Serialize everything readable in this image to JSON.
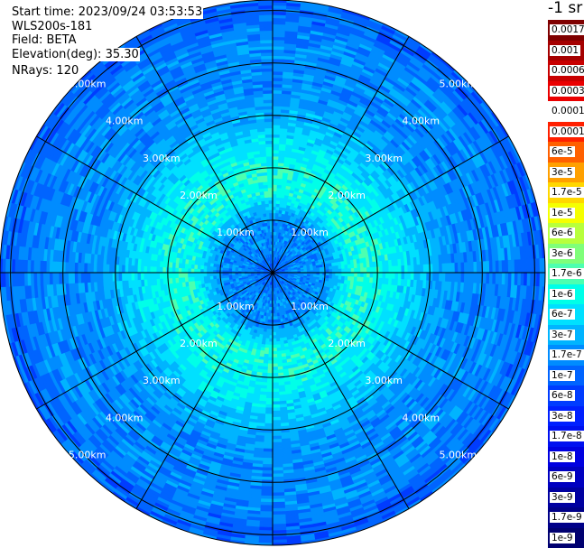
{
  "header": {
    "start_time": "Start time: 2023/09/24 03:53:53",
    "instrument": "WLS200s-181",
    "field": "Field: BETA",
    "elevation_label": "Elevation(deg):",
    "elevation_value": "35.30",
    "nrays": "NRays: 120"
  },
  "colorbar": {
    "unit": "-1 sr",
    "tick_labels": [
      "0.0017",
      "0.001",
      "0.0006",
      "0.0003",
      "0.00017",
      "0.0001",
      "6e-5",
      "3e-5",
      "1.7e-5",
      "1e-5",
      "6e-6",
      "3e-6",
      "1.7e-6",
      "1e-6",
      "6e-7",
      "3e-7",
      "1.7e-7",
      "1e-7",
      "6e-8",
      "3e-8",
      "1.7e-8",
      "1e-8",
      "6e-9",
      "3e-9",
      "1.7e-9",
      "1e-9"
    ],
    "colors": [
      "#7f0000",
      "#a50000",
      "#c80000",
      "#ea0000",
      "#ffffff",
      "#ff2000",
      "#ff6000",
      "#ffa000",
      "#ffd700",
      "#f5ff00",
      "#b8ff3c",
      "#7fff7a",
      "#4dffb0",
      "#00ffe8",
      "#00e0ff",
      "#00b4ff",
      "#008cff",
      "#0064ff",
      "#003cff",
      "#0020ff",
      "#0010f0",
      "#0000e0",
      "#0000c0",
      "#0000a0",
      "#000088",
      "#000070"
    ]
  },
  "chart_data": {
    "type": "heatmap",
    "projection": "polar PPI",
    "field": "BETA",
    "elevation_deg": 35.3,
    "n_rays": 120,
    "range_ring_labels": [
      "1.00km",
      "2.00km",
      "3.00km",
      "4.00km",
      "5.00km"
    ],
    "range_rings_km": [
      1,
      2,
      3,
      4,
      5
    ],
    "max_range_km": 5.2,
    "spoke_angles_deg": [
      0,
      30,
      60,
      90,
      120,
      150,
      180,
      210,
      240,
      270,
      300,
      330
    ],
    "radial_profile": [
      {
        "range_km": 0.1,
        "beta": 1e-07
      },
      {
        "range_km": 0.5,
        "beta": 1.7e-07
      },
      {
        "range_km": 1.0,
        "beta": 1.7e-07
      },
      {
        "range_km": 1.5,
        "beta": 1e-06
      },
      {
        "range_km": 2.0,
        "beta": 1e-06
      },
      {
        "range_km": 2.5,
        "beta": 6e-07
      },
      {
        "range_km": 3.0,
        "beta": 3e-07
      },
      {
        "range_km": 3.5,
        "beta": 1.7e-07
      },
      {
        "range_km": 4.0,
        "beta": 1.7e-07
      },
      {
        "range_km": 4.5,
        "beta": 1.7e-07
      },
      {
        "range_km": 5.0,
        "beta": 1e-07
      }
    ],
    "scale": "log",
    "grid": true
  }
}
